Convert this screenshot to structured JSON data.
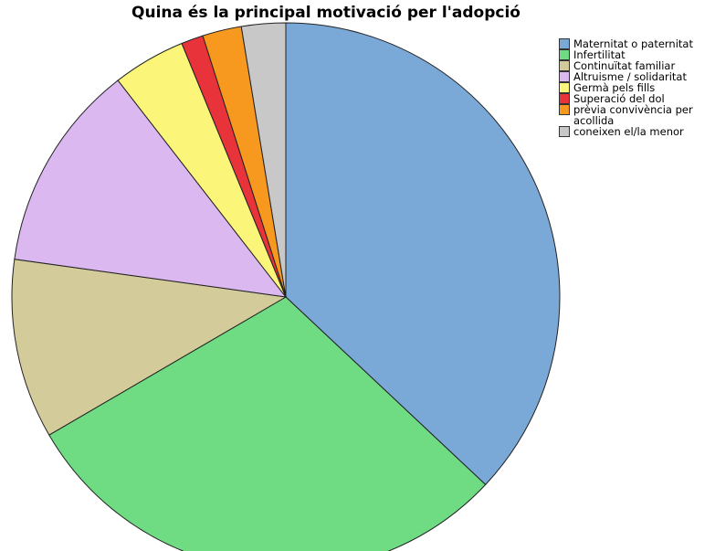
{
  "chart_data": {
    "type": "pie",
    "title": "Quina és la principal motivació per l'adopció",
    "categories": [
      "Maternitat o paternitat",
      "Infertilitat",
      "Continuïtat familiar",
      "Altruisme / solidaritat",
      "Germà pels fills",
      "Superació del dol",
      "prèvia convivència per acollida",
      "coneixen el/la menor"
    ],
    "values": [
      37.0,
      29.6,
      10.6,
      12.3,
      4.3,
      1.3,
      2.3,
      2.6
    ],
    "colors": [
      "#7aa9d8",
      "#6fdc84",
      "#d3cb9a",
      "#dcb8f0",
      "#fbf57a",
      "#e8333b",
      "#f7981f",
      "#c8c8c8"
    ],
    "legend": "right"
  }
}
